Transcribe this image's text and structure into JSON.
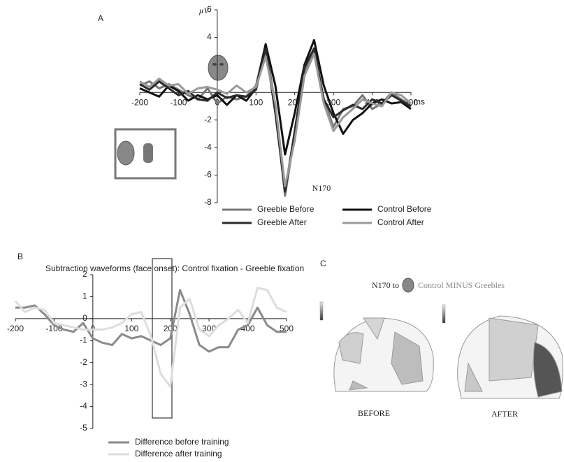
{
  "chart_data": [
    {
      "type": "line",
      "panel_label": "A",
      "y_label": "µV",
      "x_unit": "ms",
      "annotation": "N170",
      "x": [
        -200,
        -175,
        -150,
        -125,
        -100,
        -75,
        -50,
        -25,
        0,
        25,
        50,
        75,
        100,
        125,
        150,
        175,
        200,
        225,
        250,
        275,
        300,
        325,
        350,
        375,
        400,
        425,
        450,
        475,
        500
      ],
      "xlim": [
        -200,
        500
      ],
      "xticks": [
        -200,
        -100,
        0,
        100,
        200,
        300,
        400,
        500
      ],
      "ylim": [
        -8,
        6
      ],
      "yticks": [
        -8,
        -6,
        -4,
        -2,
        4,
        6
      ],
      "series": [
        {
          "name": "Greeble Before",
          "color": "#777777",
          "values": [
            0.5,
            0.8,
            0.3,
            0.6,
            0.2,
            -0.2,
            -0.5,
            0.3,
            -0.8,
            -0.3,
            -0.5,
            -0.3,
            0.5,
            3.5,
            -1,
            -7.5,
            -3,
            1.5,
            3,
            -0.5,
            -2.5,
            -1.2,
            -1,
            -0.2,
            -1.2,
            -0.8,
            0,
            -0.5,
            -1
          ]
        },
        {
          "name": "Control Before",
          "color": "#111111",
          "values": [
            0.3,
            0,
            -0.3,
            0.5,
            0.1,
            -0.6,
            -0.2,
            -0.5,
            -0.2,
            -0.9,
            -0.2,
            -0.6,
            0.3,
            3.5,
            0.5,
            -4.5,
            -1.5,
            2,
            3.8,
            0.5,
            -1.5,
            -3,
            -2,
            -1.5,
            -0.8,
            -0.5,
            -0.8,
            -0.7,
            -1.2
          ]
        },
        {
          "name": "Greeble After",
          "color": "#2a2a2a",
          "values": [
            0.6,
            0.2,
            0.8,
            0.3,
            -0.2,
            0.1,
            -0.5,
            -0.6,
            0,
            -0.4,
            -0.2,
            -0.3,
            0.2,
            3.2,
            -1.5,
            -7.2,
            -2.8,
            1.8,
            3.2,
            -0.5,
            -1.8,
            -1.3,
            -0.9,
            -1.2,
            -0.5,
            -0.8,
            -0.2,
            -0.6,
            -1
          ]
        },
        {
          "name": "Control After",
          "color": "#9a9a9a",
          "values": [
            0.8,
            0.4,
            1,
            0.5,
            0.6,
            -0.1,
            0.3,
            0.4,
            0.2,
            -0.1,
            0.5,
            0,
            0.4,
            2.6,
            -0.8,
            -6.8,
            -3.5,
            1.2,
            2.8,
            -0.8,
            -2.8,
            -1.8,
            -1.2,
            -0.5,
            -0.8,
            -1,
            0,
            -0.2,
            -0.8
          ]
        }
      ]
    },
    {
      "type": "line",
      "panel_label": "B",
      "title": "Subtraction waveforms (face onset):  Control fixation - Greeble fixation",
      "x": [
        -200,
        -175,
        -150,
        -125,
        -100,
        -75,
        -50,
        -25,
        0,
        25,
        50,
        75,
        100,
        125,
        150,
        175,
        200,
        225,
        250,
        275,
        300,
        325,
        350,
        375,
        400,
        425,
        450,
        475,
        500
      ],
      "xlim": [
        -200,
        500
      ],
      "xticks": [
        -200,
        -100,
        0,
        100,
        200,
        300,
        400,
        500
      ],
      "ylim": [
        -5,
        2
      ],
      "yticks": [
        -5,
        -4,
        -3,
        -2,
        -1,
        0,
        1,
        2
      ],
      "series": [
        {
          "name": "Difference before training",
          "color": "#8a8a8a",
          "values": [
            0.5,
            0.5,
            0.6,
            0.2,
            -0.3,
            -0.5,
            -0.6,
            -0.2,
            -0.9,
            -1.1,
            -1.2,
            -0.7,
            -0.9,
            -0.8,
            -1,
            -1.2,
            -0.9,
            1.3,
            0.2,
            -1.2,
            -1.5,
            -1.3,
            -1.3,
            -0.5,
            -0.3,
            0.5,
            -0.3,
            -0.6,
            -0.6
          ]
        },
        {
          "name": "Difference after training",
          "color": "#dddddd",
          "values": [
            0.8,
            0.3,
            0.5,
            0.4,
            -0.2,
            -0.3,
            -0.4,
            -0.5,
            -0.5,
            -0.5,
            -0.4,
            -0.2,
            0.2,
            0.3,
            -0.8,
            -2.5,
            -3.1,
            0.5,
            0.9,
            -0.5,
            -0.8,
            -0.3,
            0,
            0.4,
            -0.2,
            1.4,
            1.3,
            0.5,
            0.3
          ]
        }
      ]
    }
  ],
  "panel_c": {
    "label": "C",
    "title_prefix": "N170 to",
    "title_suffix": "Control MINUS Greebles",
    "maps": [
      "BEFORE",
      "AFTER"
    ]
  }
}
